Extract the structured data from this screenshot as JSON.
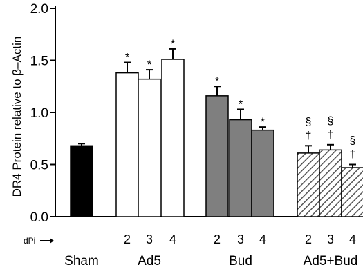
{
  "chart_data": {
    "type": "bar",
    "ylabel": "DR4 Protein relative to β–Actin",
    "ylim": [
      0.0,
      2.0
    ],
    "yticks": [
      "0.0",
      "0.5",
      "1.0",
      "1.5",
      "2.0"
    ],
    "grid": false,
    "x_axis_prefix": "dPi",
    "groups": [
      {
        "name": "Sham",
        "fill": "black"
      },
      {
        "name": "Ad5",
        "fill": "white"
      },
      {
        "name": "Bud",
        "fill": "gray"
      },
      {
        "name": "Ad5+Bud",
        "fill": "hatched"
      }
    ],
    "bars": [
      {
        "group": "Sham",
        "dpi": "",
        "value": 0.68,
        "error": 0.02,
        "marks": []
      },
      {
        "group": "Ad5",
        "dpi": "2",
        "value": 1.38,
        "error": 0.1,
        "marks": [
          "*"
        ]
      },
      {
        "group": "Ad5",
        "dpi": "3",
        "value": 1.32,
        "error": 0.09,
        "marks": [
          "*"
        ]
      },
      {
        "group": "Ad5",
        "dpi": "4",
        "value": 1.51,
        "error": 0.1,
        "marks": [
          "*"
        ]
      },
      {
        "group": "Bud",
        "dpi": "2",
        "value": 1.16,
        "error": 0.09,
        "marks": [
          "*"
        ]
      },
      {
        "group": "Bud",
        "dpi": "3",
        "value": 0.93,
        "error": 0.1,
        "marks": [
          "*"
        ]
      },
      {
        "group": "Bud",
        "dpi": "4",
        "value": 0.83,
        "error": 0.03,
        "marks": [
          "*"
        ]
      },
      {
        "group": "Ad5+Bud",
        "dpi": "2",
        "value": 0.61,
        "error": 0.07,
        "marks": [
          "†",
          "§"
        ]
      },
      {
        "group": "Ad5+Bud",
        "dpi": "3",
        "value": 0.64,
        "error": 0.05,
        "marks": [
          "†",
          "§"
        ]
      },
      {
        "group": "Ad5+Bud",
        "dpi": "4",
        "value": 0.47,
        "error": 0.03,
        "marks": [
          "†",
          "§"
        ]
      }
    ],
    "colors": {
      "black": "#000000",
      "white": "#ffffff",
      "gray": "#7f7f7f",
      "hatch": "#555555"
    }
  }
}
